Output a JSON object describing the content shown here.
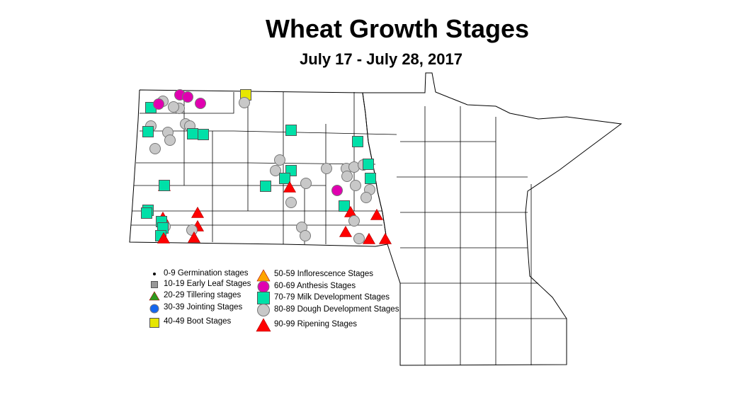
{
  "title": "Wheat Growth Stages",
  "subtitle": "July 17 - July 28, 2017",
  "legend": [
    {
      "label": "0-9 Germination stages",
      "shape": "dot",
      "color": "#000000"
    },
    {
      "label": "10-19 Early Leaf Stages",
      "shape": "square",
      "color": "#999999"
    },
    {
      "label": "20-29 Tillering stages",
      "shape": "triangle",
      "color": "#2e9a1e"
    },
    {
      "label": "30-39 Jointing Stages",
      "shape": "circle",
      "color": "#1466ee"
    },
    {
      "label": "40-49 Boot Stages",
      "shape": "square",
      "color": "#e6e600"
    },
    {
      "label": "50-59 Inflorescence Stages",
      "shape": "triangle",
      "color": "#ffa500"
    },
    {
      "label": "60-69 Anthesis Stages",
      "shape": "circle",
      "color": "#e000b0"
    },
    {
      "label": "70-79 Milk Development Stages",
      "shape": "square",
      "color": "#00e0a8"
    },
    {
      "label": "80-89 Dough Development Stages",
      "shape": "circle",
      "color": "#c8c8c8"
    },
    {
      "label": "90-99 Ripening Stages",
      "shape": "triangle",
      "color": "#ff0000"
    }
  ]
}
